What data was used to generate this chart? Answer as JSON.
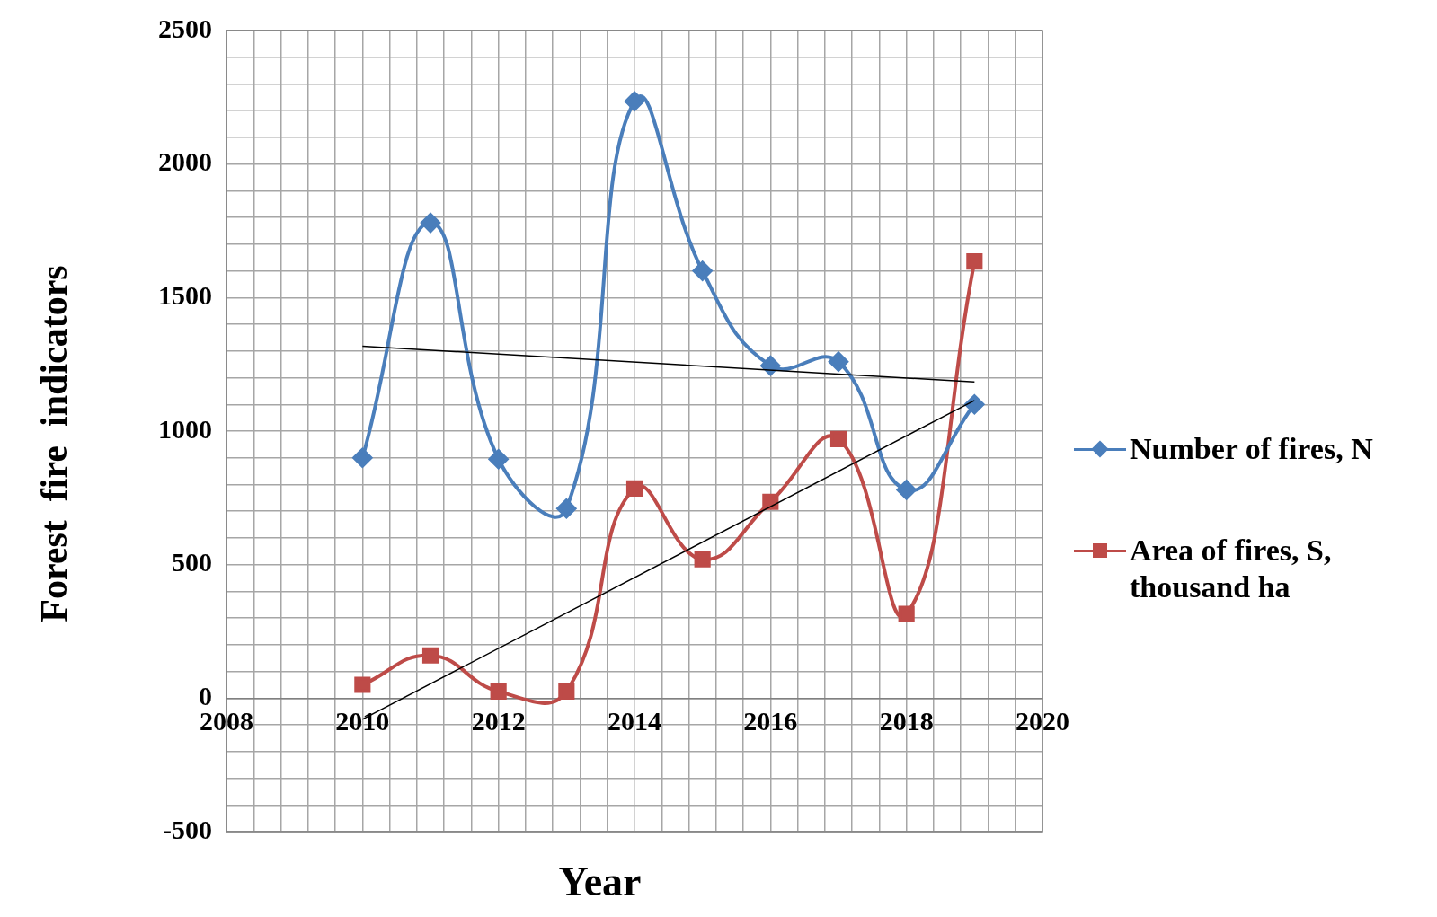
{
  "chart_data": {
    "type": "line",
    "xlabel": "Year",
    "ylabel": "Forest  fire  indicators",
    "xlim": [
      2008,
      2020
    ],
    "ylim": [
      -500,
      2500
    ],
    "xticks": [
      2008,
      {
        "value": 2008.4,
        "label": null
      },
      {
        "value": 2008.8,
        "label": null
      },
      {
        "value": 2009.2,
        "label": null
      },
      {
        "value": 2009.6,
        "label": null
      },
      2010,
      {
        "value": 2010.4,
        "label": null
      },
      {
        "value": 2010.8,
        "label": null
      },
      {
        "value": 2011.2,
        "label": null
      },
      {
        "value": 2011.6,
        "label": null
      },
      2012,
      {
        "value": 2012.4,
        "label": null
      },
      {
        "value": 2012.8,
        "label": null
      },
      {
        "value": 2013.2,
        "label": null
      },
      {
        "value": 2013.6,
        "label": null
      },
      2014,
      {
        "value": 2014.4,
        "label": null
      },
      {
        "value": 2014.8,
        "label": null
      },
      {
        "value": 2015.2,
        "label": null
      },
      {
        "value": 2015.6,
        "label": null
      },
      2016,
      {
        "value": 2016.4,
        "label": null
      },
      {
        "value": 2016.8,
        "label": null
      },
      {
        "value": 2017.2,
        "label": null
      },
      {
        "value": 2017.6,
        "label": null
      },
      2018,
      {
        "value": 2018.4,
        "label": null
      },
      {
        "value": 2018.8,
        "label": null
      },
      {
        "value": 2019.2,
        "label": null
      },
      {
        "value": 2019.6,
        "label": null
      },
      2020
    ],
    "yticks": [
      -500,
      {
        "value": -400,
        "label": null
      },
      {
        "value": -300,
        "label": null
      },
      {
        "value": -200,
        "label": null
      },
      {
        "value": -100,
        "label": null
      },
      0,
      {
        "value": 100,
        "label": null
      },
      {
        "value": 200,
        "label": null
      },
      {
        "value": 300,
        "label": null
      },
      {
        "value": 400,
        "label": null
      },
      500,
      {
        "value": 600,
        "label": null
      },
      {
        "value": 700,
        "label": null
      },
      {
        "value": 800,
        "label": null
      },
      {
        "value": 900,
        "label": null
      },
      1000,
      {
        "value": 1100,
        "label": null
      },
      {
        "value": 1200,
        "label": null
      },
      {
        "value": 1300,
        "label": null
      },
      {
        "value": 1400,
        "label": null
      },
      1500,
      {
        "value": 1600,
        "label": null
      },
      {
        "value": 1700,
        "label": null
      },
      {
        "value": 1800,
        "label": null
      },
      {
        "value": 1900,
        "label": null
      },
      2000,
      {
        "value": 2100,
        "label": null
      },
      {
        "value": 2200,
        "label": null
      },
      {
        "value": 2300,
        "label": null
      },
      {
        "value": 2400,
        "label": null
      },
      2500
    ],
    "x": [
      2010,
      2011,
      2012,
      2013,
      2014,
      2015,
      2016,
      2017,
      2018,
      2019
    ],
    "grid": true,
    "legend": "right",
    "line_style": "solid",
    "series": [
      {
        "name": "Number of fires, N",
        "color": "#4a7ebb",
        "marker": "diamond",
        "values": [
          900,
          1780,
          895,
          710,
          2235,
          1600,
          1245,
          1260,
          780,
          1100
        ]
      },
      {
        "name": "Area of fires, S, thousand ha",
        "color": "#be4b48",
        "marker": "square",
        "values": [
          50,
          160,
          25,
          25,
          785,
          520,
          735,
          970,
          315,
          1635
        ]
      },
      {
        "color": "#000000",
        "marker": "none",
        "values": [
          1318,
          null,
          null,
          null,
          null,
          null,
          null,
          null,
          null,
          1184
        ]
      },
      {
        "color": "#000000",
        "marker": "none",
        "values": [
          -79,
          null,
          null,
          null,
          null,
          null,
          null,
          null,
          null,
          1115
        ]
      }
    ]
  }
}
